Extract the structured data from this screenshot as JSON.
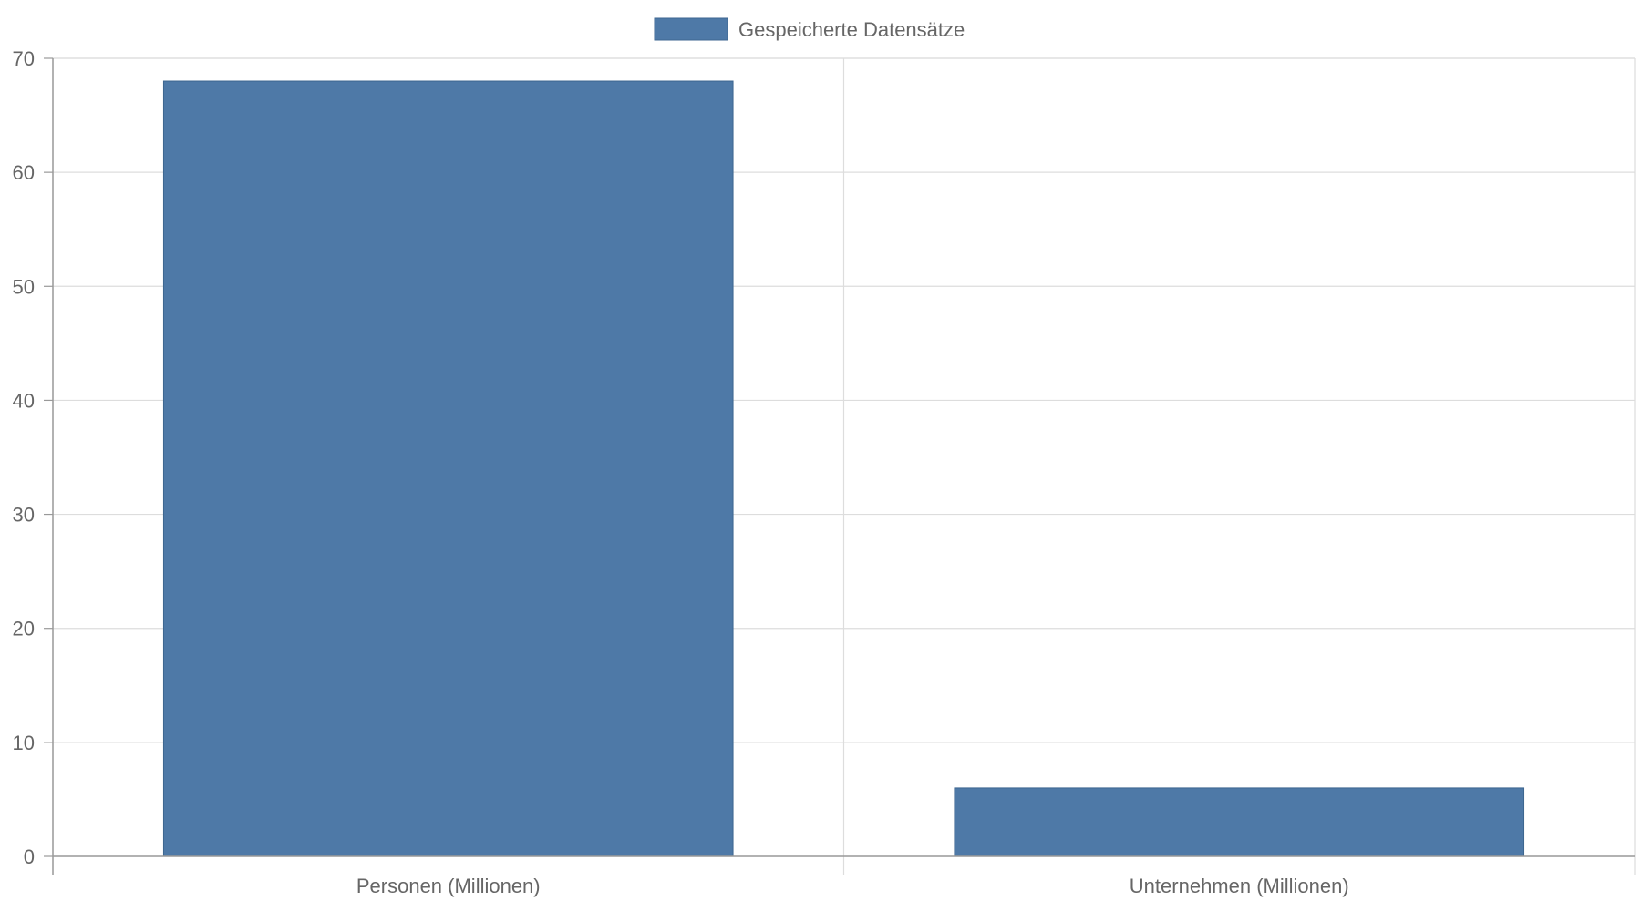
{
  "chart_data": {
    "type": "bar",
    "categories": [
      "Personen (Millionen)",
      "Unternehmen (Millionen)"
    ],
    "series": [
      {
        "name": "Gespeicherte Datensätze",
        "values": [
          68,
          6
        ],
        "color": "#4e79a7"
      }
    ],
    "ylim": [
      0,
      70
    ],
    "yticks": [
      "0",
      "10",
      "20",
      "30",
      "40",
      "50",
      "60",
      "70"
    ],
    "grid": true,
    "legend_position": "top-center",
    "colors": {
      "gridline": "#dddddd",
      "axis": "#999999",
      "text": "#666666"
    }
  }
}
